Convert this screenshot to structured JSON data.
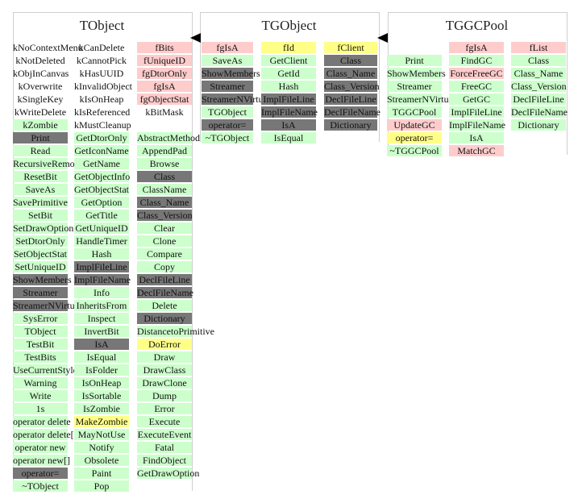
{
  "colors": {
    "green": "#ccffcc",
    "red": "#ffcccc",
    "yellow": "#ffff88",
    "gray": "#777777"
  },
  "classes": [
    {
      "title": "TObject",
      "columns": [
        [
          {
            "t": "kNoContextMenu",
            "c": "none"
          },
          {
            "t": "kNotDeleted",
            "c": "none"
          },
          {
            "t": "kObjInCanvas",
            "c": "none"
          },
          {
            "t": "kOverwrite",
            "c": "none"
          },
          {
            "t": "kSingleKey",
            "c": "none"
          },
          {
            "t": "kWriteDelete",
            "c": "none"
          },
          {
            "t": "kZombie",
            "c": "green"
          },
          {
            "t": "Print",
            "c": "gray"
          },
          {
            "t": "Read",
            "c": "green"
          },
          {
            "t": "RecursiveRemove",
            "c": "green"
          },
          {
            "t": "ResetBit",
            "c": "green"
          },
          {
            "t": "SaveAs",
            "c": "green"
          },
          {
            "t": "SavePrimitive",
            "c": "green"
          },
          {
            "t": "SetBit",
            "c": "green"
          },
          {
            "t": "SetDrawOption",
            "c": "green"
          },
          {
            "t": "SetDtorOnly",
            "c": "green"
          },
          {
            "t": "SetObjectStat",
            "c": "green"
          },
          {
            "t": "SetUniqueID",
            "c": "green"
          },
          {
            "t": "ShowMembers",
            "c": "gray"
          },
          {
            "t": "Streamer",
            "c": "gray"
          },
          {
            "t": "StreamerNVirtual",
            "c": "gray"
          },
          {
            "t": "SysError",
            "c": "green"
          },
          {
            "t": "TObject",
            "c": "green"
          },
          {
            "t": "TestBit",
            "c": "green"
          },
          {
            "t": "TestBits",
            "c": "green"
          },
          {
            "t": "UseCurrentStyle",
            "c": "green"
          },
          {
            "t": "Warning",
            "c": "green"
          },
          {
            "t": "Write",
            "c": "green"
          },
          {
            "t": "1s",
            "c": "green"
          },
          {
            "t": "operator delete",
            "c": "green"
          },
          {
            "t": "operator delete[]",
            "c": "green"
          },
          {
            "t": "operator new",
            "c": "green"
          },
          {
            "t": "operator new[]",
            "c": "green"
          },
          {
            "t": "operator=",
            "c": "gray"
          },
          {
            "t": "~TObject",
            "c": "green"
          }
        ],
        [
          {
            "t": "kCanDelete",
            "c": "none"
          },
          {
            "t": "kCannotPick",
            "c": "none"
          },
          {
            "t": "kHasUUID",
            "c": "none"
          },
          {
            "t": "kInvalidObject",
            "c": "none"
          },
          {
            "t": "kIsOnHeap",
            "c": "none"
          },
          {
            "t": "kIsReferenced",
            "c": "none"
          },
          {
            "t": "kMustCleanup",
            "c": "none"
          },
          {
            "t": "GetDtorOnly",
            "c": "green"
          },
          {
            "t": "GetIconName",
            "c": "green"
          },
          {
            "t": "GetName",
            "c": "green"
          },
          {
            "t": "GetObjectInfo",
            "c": "green"
          },
          {
            "t": "GetObjectStat",
            "c": "green"
          },
          {
            "t": "GetOption",
            "c": "green"
          },
          {
            "t": "GetTitle",
            "c": "green"
          },
          {
            "t": "GetUniqueID",
            "c": "green"
          },
          {
            "t": "HandleTimer",
            "c": "green"
          },
          {
            "t": "Hash",
            "c": "green"
          },
          {
            "t": "ImplFileLine",
            "c": "gray"
          },
          {
            "t": "ImplFileName",
            "c": "gray"
          },
          {
            "t": "Info",
            "c": "green"
          },
          {
            "t": "InheritsFrom",
            "c": "green"
          },
          {
            "t": "Inspect",
            "c": "green"
          },
          {
            "t": "InvertBit",
            "c": "green"
          },
          {
            "t": "IsA",
            "c": "gray"
          },
          {
            "t": "IsEqual",
            "c": "green"
          },
          {
            "t": "IsFolder",
            "c": "green"
          },
          {
            "t": "IsOnHeap",
            "c": "green"
          },
          {
            "t": "IsSortable",
            "c": "green"
          },
          {
            "t": "IsZombie",
            "c": "green"
          },
          {
            "t": "MakeZombie",
            "c": "yellow"
          },
          {
            "t": "MayNotUse",
            "c": "green"
          },
          {
            "t": "Notify",
            "c": "green"
          },
          {
            "t": "Obsolete",
            "c": "green"
          },
          {
            "t": "Paint",
            "c": "green"
          },
          {
            "t": "Pop",
            "c": "green"
          }
        ],
        [
          {
            "t": "fBits",
            "c": "red"
          },
          {
            "t": "fUniqueID",
            "c": "red"
          },
          {
            "t": "fgDtorOnly",
            "c": "red"
          },
          {
            "t": "fgIsA",
            "c": "red"
          },
          {
            "t": "fgObjectStat",
            "c": "red"
          },
          {
            "t": "kBitMask",
            "c": "none"
          },
          {
            "t": "",
            "c": "none"
          },
          {
            "t": "AbstractMethod",
            "c": "green"
          },
          {
            "t": "AppendPad",
            "c": "green"
          },
          {
            "t": "Browse",
            "c": "green"
          },
          {
            "t": "Class",
            "c": "gray"
          },
          {
            "t": "ClassName",
            "c": "green"
          },
          {
            "t": "Class_Name",
            "c": "gray"
          },
          {
            "t": "Class_Version",
            "c": "gray"
          },
          {
            "t": "Clear",
            "c": "green"
          },
          {
            "t": "Clone",
            "c": "green"
          },
          {
            "t": "Compare",
            "c": "green"
          },
          {
            "t": "Copy",
            "c": "green"
          },
          {
            "t": "DeclFileLine",
            "c": "gray"
          },
          {
            "t": "DeclFileName",
            "c": "gray"
          },
          {
            "t": "Delete",
            "c": "green"
          },
          {
            "t": "Dictionary",
            "c": "gray"
          },
          {
            "t": "DistancetoPrimitive",
            "c": "green"
          },
          {
            "t": "DoError",
            "c": "yellow"
          },
          {
            "t": "Draw",
            "c": "green"
          },
          {
            "t": "DrawClass",
            "c": "green"
          },
          {
            "t": "DrawClone",
            "c": "green"
          },
          {
            "t": "Dump",
            "c": "green"
          },
          {
            "t": "Error",
            "c": "green"
          },
          {
            "t": "Execute",
            "c": "green"
          },
          {
            "t": "ExecuteEvent",
            "c": "green"
          },
          {
            "t": "Fatal",
            "c": "green"
          },
          {
            "t": "FindObject",
            "c": "green"
          },
          {
            "t": "GetDrawOption",
            "c": "green"
          }
        ]
      ]
    },
    {
      "title": "TGObject",
      "columns": [
        [
          {
            "t": "fgIsA",
            "c": "red"
          },
          {
            "t": "SaveAs",
            "c": "green"
          },
          {
            "t": "ShowMembers",
            "c": "gray"
          },
          {
            "t": "Streamer",
            "c": "gray"
          },
          {
            "t": "StreamerNVirtual",
            "c": "gray"
          },
          {
            "t": "TGObject",
            "c": "green"
          },
          {
            "t": "operator=",
            "c": "gray"
          },
          {
            "t": "~TGObject",
            "c": "green"
          }
        ],
        [
          {
            "t": "fId",
            "c": "yellow"
          },
          {
            "t": "GetClient",
            "c": "green"
          },
          {
            "t": "GetId",
            "c": "green"
          },
          {
            "t": "Hash",
            "c": "green"
          },
          {
            "t": "ImplFileLine",
            "c": "gray"
          },
          {
            "t": "ImplFileName",
            "c": "gray"
          },
          {
            "t": "IsA",
            "c": "gray"
          },
          {
            "t": "IsEqual",
            "c": "green"
          }
        ],
        [
          {
            "t": "fClient",
            "c": "yellow"
          },
          {
            "t": "Class",
            "c": "gray"
          },
          {
            "t": "Class_Name",
            "c": "gray"
          },
          {
            "t": "Class_Version",
            "c": "gray"
          },
          {
            "t": "DeclFileLine",
            "c": "gray"
          },
          {
            "t": "DeclFileName",
            "c": "gray"
          },
          {
            "t": "Dictionary",
            "c": "gray"
          }
        ]
      ]
    },
    {
      "title": "TGGCPool",
      "columns": [
        [
          {
            "t": "",
            "c": "none"
          },
          {
            "t": "Print",
            "c": "green"
          },
          {
            "t": "ShowMembers",
            "c": "green"
          },
          {
            "t": "Streamer",
            "c": "green"
          },
          {
            "t": "StreamerNVirtual",
            "c": "green"
          },
          {
            "t": "TGGCPool",
            "c": "green"
          },
          {
            "t": "UpdateGC",
            "c": "red"
          },
          {
            "t": "operator=",
            "c": "yellow"
          },
          {
            "t": "~TGGCPool",
            "c": "green"
          }
        ],
        [
          {
            "t": "fgIsA",
            "c": "red"
          },
          {
            "t": "FindGC",
            "c": "green"
          },
          {
            "t": "ForceFreeGC",
            "c": "red"
          },
          {
            "t": "FreeGC",
            "c": "green"
          },
          {
            "t": "GetGC",
            "c": "green"
          },
          {
            "t": "ImplFileLine",
            "c": "green"
          },
          {
            "t": "ImplFileName",
            "c": "green"
          },
          {
            "t": "IsA",
            "c": "green"
          },
          {
            "t": "MatchGC",
            "c": "red"
          }
        ],
        [
          {
            "t": "fList",
            "c": "red"
          },
          {
            "t": "Class",
            "c": "green"
          },
          {
            "t": "Class_Name",
            "c": "green"
          },
          {
            "t": "Class_Version",
            "c": "green"
          },
          {
            "t": "DeclFileLine",
            "c": "green"
          },
          {
            "t": "DeclFileName",
            "c": "green"
          },
          {
            "t": "Dictionary",
            "c": "green"
          }
        ]
      ]
    }
  ]
}
